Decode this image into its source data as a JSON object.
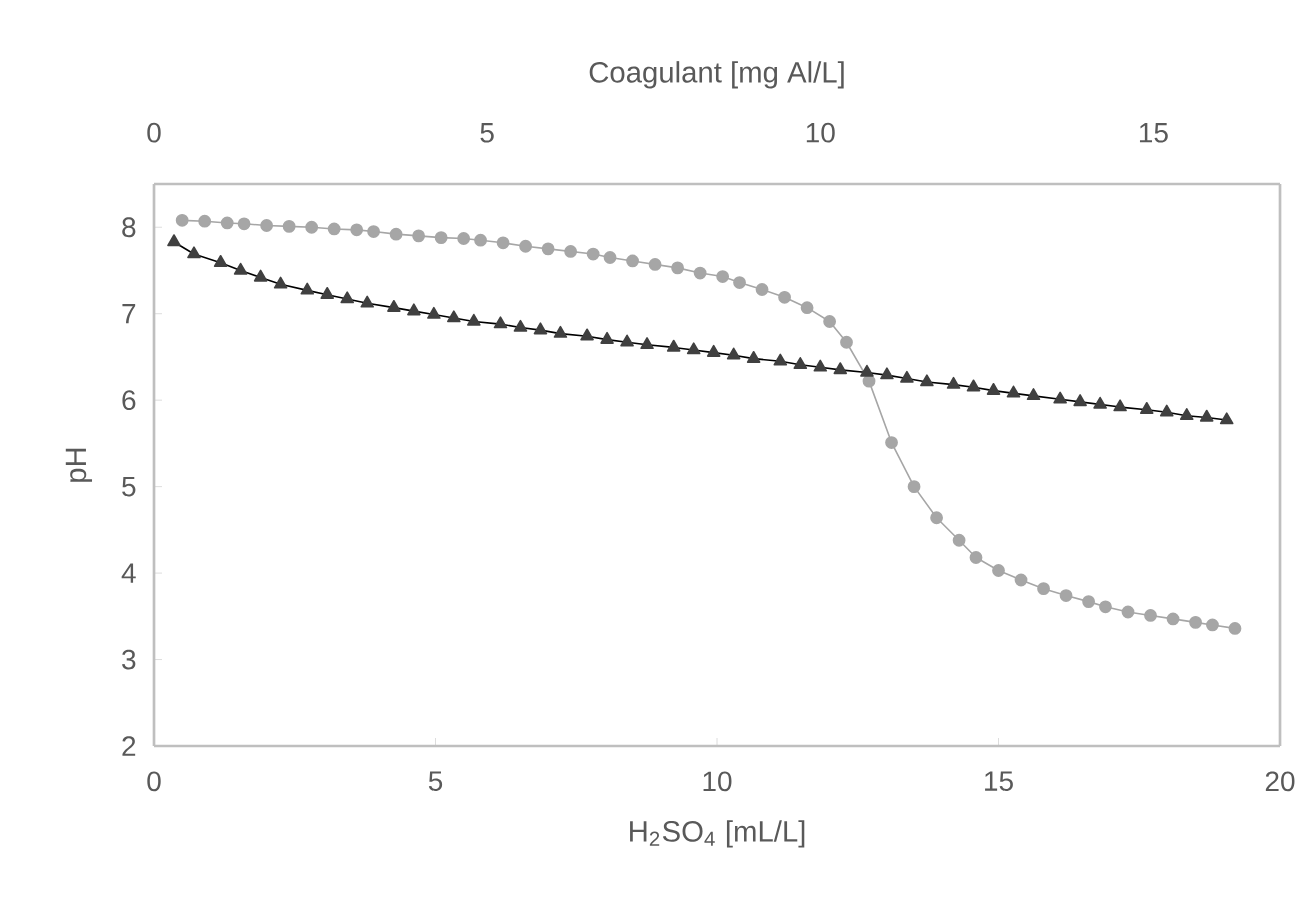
{
  "chart_data": {
    "type": "line",
    "xlabel": "H$_{2}$SO$_{4}$ [mL/L]",
    "x2label": "Coagulant [mg Al/L]",
    "ylabel": "pH",
    "xlim": [
      0,
      20
    ],
    "xticks": [
      0,
      5,
      10,
      15,
      20
    ],
    "x2lim": [
      0,
      16.9
    ],
    "x2ticks": [
      0,
      5,
      10,
      15
    ],
    "ylim": [
      2,
      8.5
    ],
    "yticks": [
      2,
      3,
      4,
      5,
      6,
      7,
      8
    ],
    "grid": false,
    "line_style": "solid",
    "series": [
      {
        "color": "#a6a6a6",
        "marker": "circle",
        "x": [
          0.5,
          0.9,
          1.3,
          1.6,
          2.0,
          2.4,
          2.8,
          3.2,
          3.6,
          3.9,
          4.3,
          4.7,
          5.1,
          5.5,
          5.8,
          6.2,
          6.6,
          7.0,
          7.4,
          7.8,
          8.1,
          8.5,
          8.9,
          9.3,
          9.7,
          10.1,
          10.4,
          10.8,
          11.2,
          11.6,
          12.0,
          12.3,
          12.7,
          13.1,
          13.5,
          13.9,
          14.3,
          14.6,
          15.0,
          15.4,
          15.8,
          16.2,
          16.6,
          16.9,
          17.3,
          17.7,
          18.1,
          18.5,
          18.8,
          19.2
        ],
        "values": [
          8.08,
          8.07,
          8.05,
          8.04,
          8.02,
          8.01,
          8.0,
          7.98,
          7.97,
          7.95,
          7.92,
          7.9,
          7.88,
          7.87,
          7.85,
          7.82,
          7.78,
          7.75,
          7.72,
          7.69,
          7.65,
          7.61,
          7.57,
          7.53,
          7.47,
          7.43,
          7.36,
          7.28,
          7.19,
          7.07,
          6.91,
          6.67,
          6.22,
          5.51,
          5.0,
          4.64,
          4.38,
          4.18,
          4.03,
          3.92,
          3.82,
          3.74,
          3.67,
          3.61,
          3.55,
          3.51,
          3.47,
          3.43,
          3.4,
          3.36
        ]
      },
      {
        "color": "#404040",
        "marker": "triangle",
        "axis": "x2",
        "x": [
          0.3,
          0.6,
          1.0,
          1.3,
          1.6,
          1.9,
          2.3,
          2.6,
          2.9,
          3.2,
          3.6,
          3.9,
          4.2,
          4.5,
          4.8,
          5.2,
          5.5,
          5.8,
          6.1,
          6.5,
          6.8,
          7.1,
          7.4,
          7.8,
          8.1,
          8.4,
          8.7,
          9.0,
          9.4,
          9.7,
          10.0,
          10.3,
          10.7,
          11.0,
          11.3,
          11.6,
          12.0,
          12.3,
          12.6,
          12.9,
          13.2,
          13.6,
          13.9,
          14.2,
          14.5,
          14.9,
          15.2,
          15.5,
          15.8,
          16.1
        ],
        "values": [
          7.83,
          7.69,
          7.59,
          7.5,
          7.42,
          7.34,
          7.27,
          7.22,
          7.17,
          7.12,
          7.07,
          7.03,
          6.99,
          6.95,
          6.91,
          6.88,
          6.84,
          6.81,
          6.77,
          6.74,
          6.7,
          6.67,
          6.64,
          6.61,
          6.58,
          6.55,
          6.52,
          6.48,
          6.45,
          6.41,
          6.38,
          6.35,
          6.32,
          6.29,
          6.25,
          6.21,
          6.18,
          6.15,
          6.11,
          6.08,
          6.05,
          6.01,
          5.98,
          5.95,
          5.92,
          5.89,
          5.86,
          5.82,
          5.8,
          5.77
        ]
      }
    ]
  }
}
